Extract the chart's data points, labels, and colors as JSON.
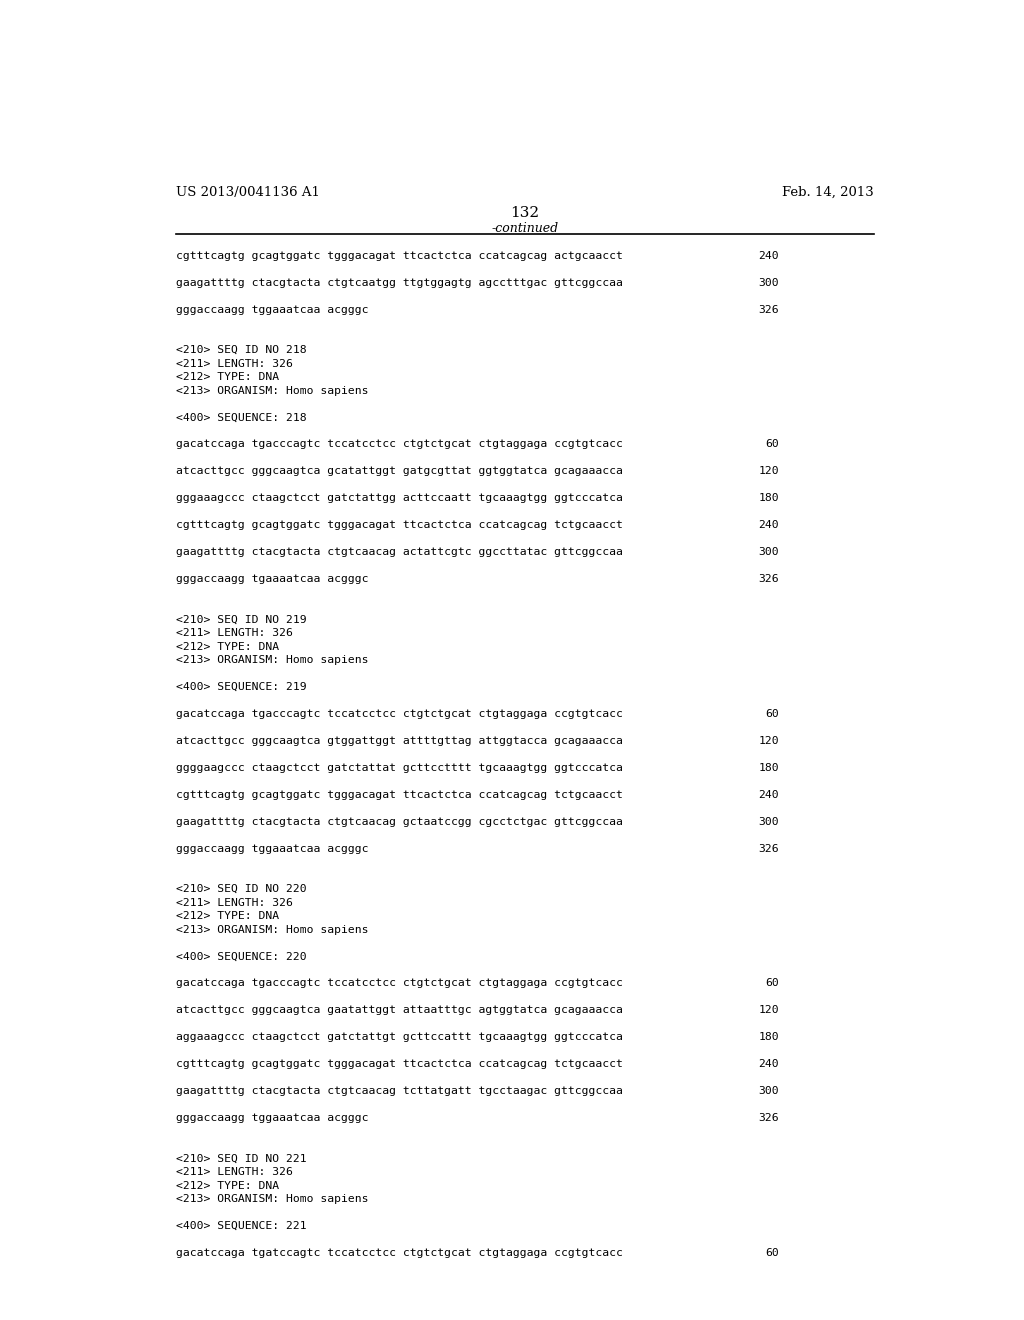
{
  "header_left": "US 2013/0041136 A1",
  "header_right": "Feb. 14, 2013",
  "page_number": "132",
  "continued_label": "-continued",
  "background_color": "#ffffff",
  "text_color": "#000000",
  "lines": [
    {
      "text": "cgtttcagtg gcagtggatc tgggacagat ttcactctca ccatcagcag actgcaacct",
      "num": "240"
    },
    {
      "text": "",
      "num": ""
    },
    {
      "text": "gaagattttg ctacgtacta ctgtcaatgg ttgtggagtg agcctttgac gttcggccaa",
      "num": "300"
    },
    {
      "text": "",
      "num": ""
    },
    {
      "text": "gggaccaagg tggaaatcaa acgggc",
      "num": "326"
    },
    {
      "text": "",
      "num": ""
    },
    {
      "text": "",
      "num": ""
    },
    {
      "text": "<210> SEQ ID NO 218",
      "num": ""
    },
    {
      "text": "<211> LENGTH: 326",
      "num": ""
    },
    {
      "text": "<212> TYPE: DNA",
      "num": ""
    },
    {
      "text": "<213> ORGANISM: Homo sapiens",
      "num": ""
    },
    {
      "text": "",
      "num": ""
    },
    {
      "text": "<400> SEQUENCE: 218",
      "num": ""
    },
    {
      "text": "",
      "num": ""
    },
    {
      "text": "gacatccaga tgacccagtc tccatcctcc ctgtctgcat ctgtaggaga ccgtgtcacc",
      "num": "60"
    },
    {
      "text": "",
      "num": ""
    },
    {
      "text": "atcacttgcc gggcaagtca gcatattggt gatgcgttat ggtggtatca gcagaaacca",
      "num": "120"
    },
    {
      "text": "",
      "num": ""
    },
    {
      "text": "gggaaagccc ctaagctcct gatctattgg acttccaatt tgcaaagtgg ggtcccatca",
      "num": "180"
    },
    {
      "text": "",
      "num": ""
    },
    {
      "text": "cgtttcagtg gcagtggatc tgggacagat ttcactctca ccatcagcag tctgcaacct",
      "num": "240"
    },
    {
      "text": "",
      "num": ""
    },
    {
      "text": "gaagattttg ctacgtacta ctgtcaacag actattcgtc ggccttatac gttcggccaa",
      "num": "300"
    },
    {
      "text": "",
      "num": ""
    },
    {
      "text": "gggaccaagg tgaaaatcaa acgggc",
      "num": "326"
    },
    {
      "text": "",
      "num": ""
    },
    {
      "text": "",
      "num": ""
    },
    {
      "text": "<210> SEQ ID NO 219",
      "num": ""
    },
    {
      "text": "<211> LENGTH: 326",
      "num": ""
    },
    {
      "text": "<212> TYPE: DNA",
      "num": ""
    },
    {
      "text": "<213> ORGANISM: Homo sapiens",
      "num": ""
    },
    {
      "text": "",
      "num": ""
    },
    {
      "text": "<400> SEQUENCE: 219",
      "num": ""
    },
    {
      "text": "",
      "num": ""
    },
    {
      "text": "gacatccaga tgacccagtc tccatcctcc ctgtctgcat ctgtaggaga ccgtgtcacc",
      "num": "60"
    },
    {
      "text": "",
      "num": ""
    },
    {
      "text": "atcacttgcc gggcaagtca gtggattggt attttgttag attggtacca gcagaaacca",
      "num": "120"
    },
    {
      "text": "",
      "num": ""
    },
    {
      "text": "ggggaagccc ctaagctcct gatctattat gcttcctttt tgcaaagtgg ggtcccatca",
      "num": "180"
    },
    {
      "text": "",
      "num": ""
    },
    {
      "text": "cgtttcagtg gcagtggatc tgggacagat ttcactctca ccatcagcag tctgcaacct",
      "num": "240"
    },
    {
      "text": "",
      "num": ""
    },
    {
      "text": "gaagattttg ctacgtacta ctgtcaacag gctaatccgg cgcctctgac gttcggccaa",
      "num": "300"
    },
    {
      "text": "",
      "num": ""
    },
    {
      "text": "gggaccaagg tggaaatcaa acgggc",
      "num": "326"
    },
    {
      "text": "",
      "num": ""
    },
    {
      "text": "",
      "num": ""
    },
    {
      "text": "<210> SEQ ID NO 220",
      "num": ""
    },
    {
      "text": "<211> LENGTH: 326",
      "num": ""
    },
    {
      "text": "<212> TYPE: DNA",
      "num": ""
    },
    {
      "text": "<213> ORGANISM: Homo sapiens",
      "num": ""
    },
    {
      "text": "",
      "num": ""
    },
    {
      "text": "<400> SEQUENCE: 220",
      "num": ""
    },
    {
      "text": "",
      "num": ""
    },
    {
      "text": "gacatccaga tgacccagtc tccatcctcc ctgtctgcat ctgtaggaga ccgtgtcacc",
      "num": "60"
    },
    {
      "text": "",
      "num": ""
    },
    {
      "text": "atcacttgcc gggcaagtca gaatattggt attaatttgc agtggtatca gcagaaacca",
      "num": "120"
    },
    {
      "text": "",
      "num": ""
    },
    {
      "text": "aggaaagccc ctaagctcct gatctattgt gcttccattt tgcaaagtgg ggtcccatca",
      "num": "180"
    },
    {
      "text": "",
      "num": ""
    },
    {
      "text": "cgtttcagtg gcagtggatc tgggacagat ttcactctca ccatcagcag tctgcaacct",
      "num": "240"
    },
    {
      "text": "",
      "num": ""
    },
    {
      "text": "gaagattttg ctacgtacta ctgtcaacag tcttatgatt tgcctaagac gttcggccaa",
      "num": "300"
    },
    {
      "text": "",
      "num": ""
    },
    {
      "text": "gggaccaagg tggaaatcaa acgggc",
      "num": "326"
    },
    {
      "text": "",
      "num": ""
    },
    {
      "text": "",
      "num": ""
    },
    {
      "text": "<210> SEQ ID NO 221",
      "num": ""
    },
    {
      "text": "<211> LENGTH: 326",
      "num": ""
    },
    {
      "text": "<212> TYPE: DNA",
      "num": ""
    },
    {
      "text": "<213> ORGANISM: Homo sapiens",
      "num": ""
    },
    {
      "text": "",
      "num": ""
    },
    {
      "text": "<400> SEQUENCE: 221",
      "num": ""
    },
    {
      "text": "",
      "num": ""
    },
    {
      "text": "gacatccaga tgatccagtc tccatcctcc ctgtctgcat ctgtaggaga ccgtgtcacc",
      "num": "60"
    }
  ]
}
